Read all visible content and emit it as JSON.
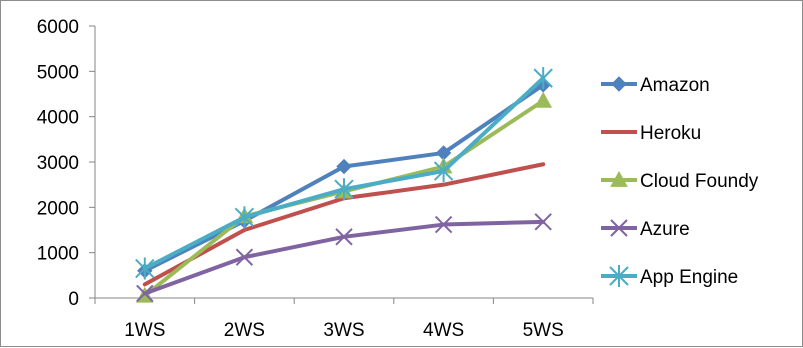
{
  "chart_data": {
    "type": "line",
    "categories": [
      "1WS",
      "2WS",
      "3WS",
      "4WS",
      "5WS"
    ],
    "series": [
      {
        "name": "Amazon",
        "values": [
          600,
          1700,
          2900,
          3200,
          4700
        ],
        "color": "#4f81bd",
        "marker": "diamond"
      },
      {
        "name": "Heroku",
        "values": [
          300,
          1500,
          2200,
          2500,
          2950
        ],
        "color": "#c0504d",
        "marker": "none"
      },
      {
        "name": "Cloud Foundy",
        "values": [
          50,
          1800,
          2350,
          2900,
          4350
        ],
        "color": "#9bbb59",
        "marker": "triangle"
      },
      {
        "name": "Azure",
        "values": [
          100,
          900,
          1350,
          1620,
          1680
        ],
        "color": "#8064a2",
        "marker": "x"
      },
      {
        "name": "App Engine",
        "values": [
          650,
          1780,
          2400,
          2800,
          4850
        ],
        "color": "#4bacc6",
        "marker": "star"
      }
    ],
    "yticks": [
      0,
      1000,
      2000,
      3000,
      4000,
      5000,
      6000
    ],
    "ylim": [
      0,
      6000
    ],
    "title": "",
    "xlabel": "",
    "ylabel": "",
    "legend_position": "right",
    "grid": false
  }
}
